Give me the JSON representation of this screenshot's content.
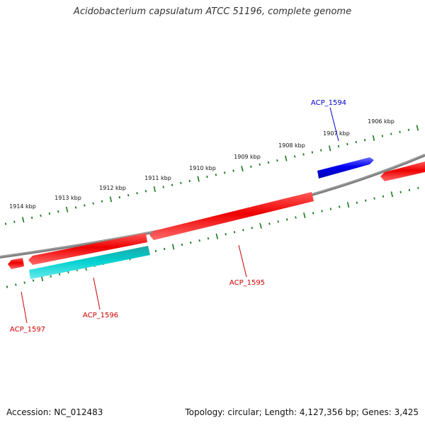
{
  "title": "Acidobacterium capsulatum ATCC 51196, complete genome",
  "footer": {
    "accession": "Accession: NC_012483",
    "topology": "Topology: circular; Length: 4,127,356 bp; Genes: 3,425"
  },
  "colors": {
    "backbone": "#808080",
    "ticks": "#1a7a1a",
    "gene_forward": "#0000ee",
    "gene_reverse": "#ee0000",
    "gene_other": "#00cccc",
    "label_forward": "#0000cc",
    "label_reverse": "#cc0000"
  },
  "kbp_labels": [
    "1906 kbp",
    "1907 kbp",
    "1908 kbp",
    "1909 kbp",
    "1910 kbp",
    "1911 kbp",
    "1912 kbp",
    "1913 kbp",
    "1914 kbp"
  ],
  "genes": [
    {
      "name": "ACP_1594",
      "strand": "forward"
    },
    {
      "name": "ACP_1595",
      "strand": "reverse"
    },
    {
      "name": "ACP_1596",
      "strand": "reverse"
    },
    {
      "name": "ACP_1597",
      "strand": "reverse"
    }
  ]
}
